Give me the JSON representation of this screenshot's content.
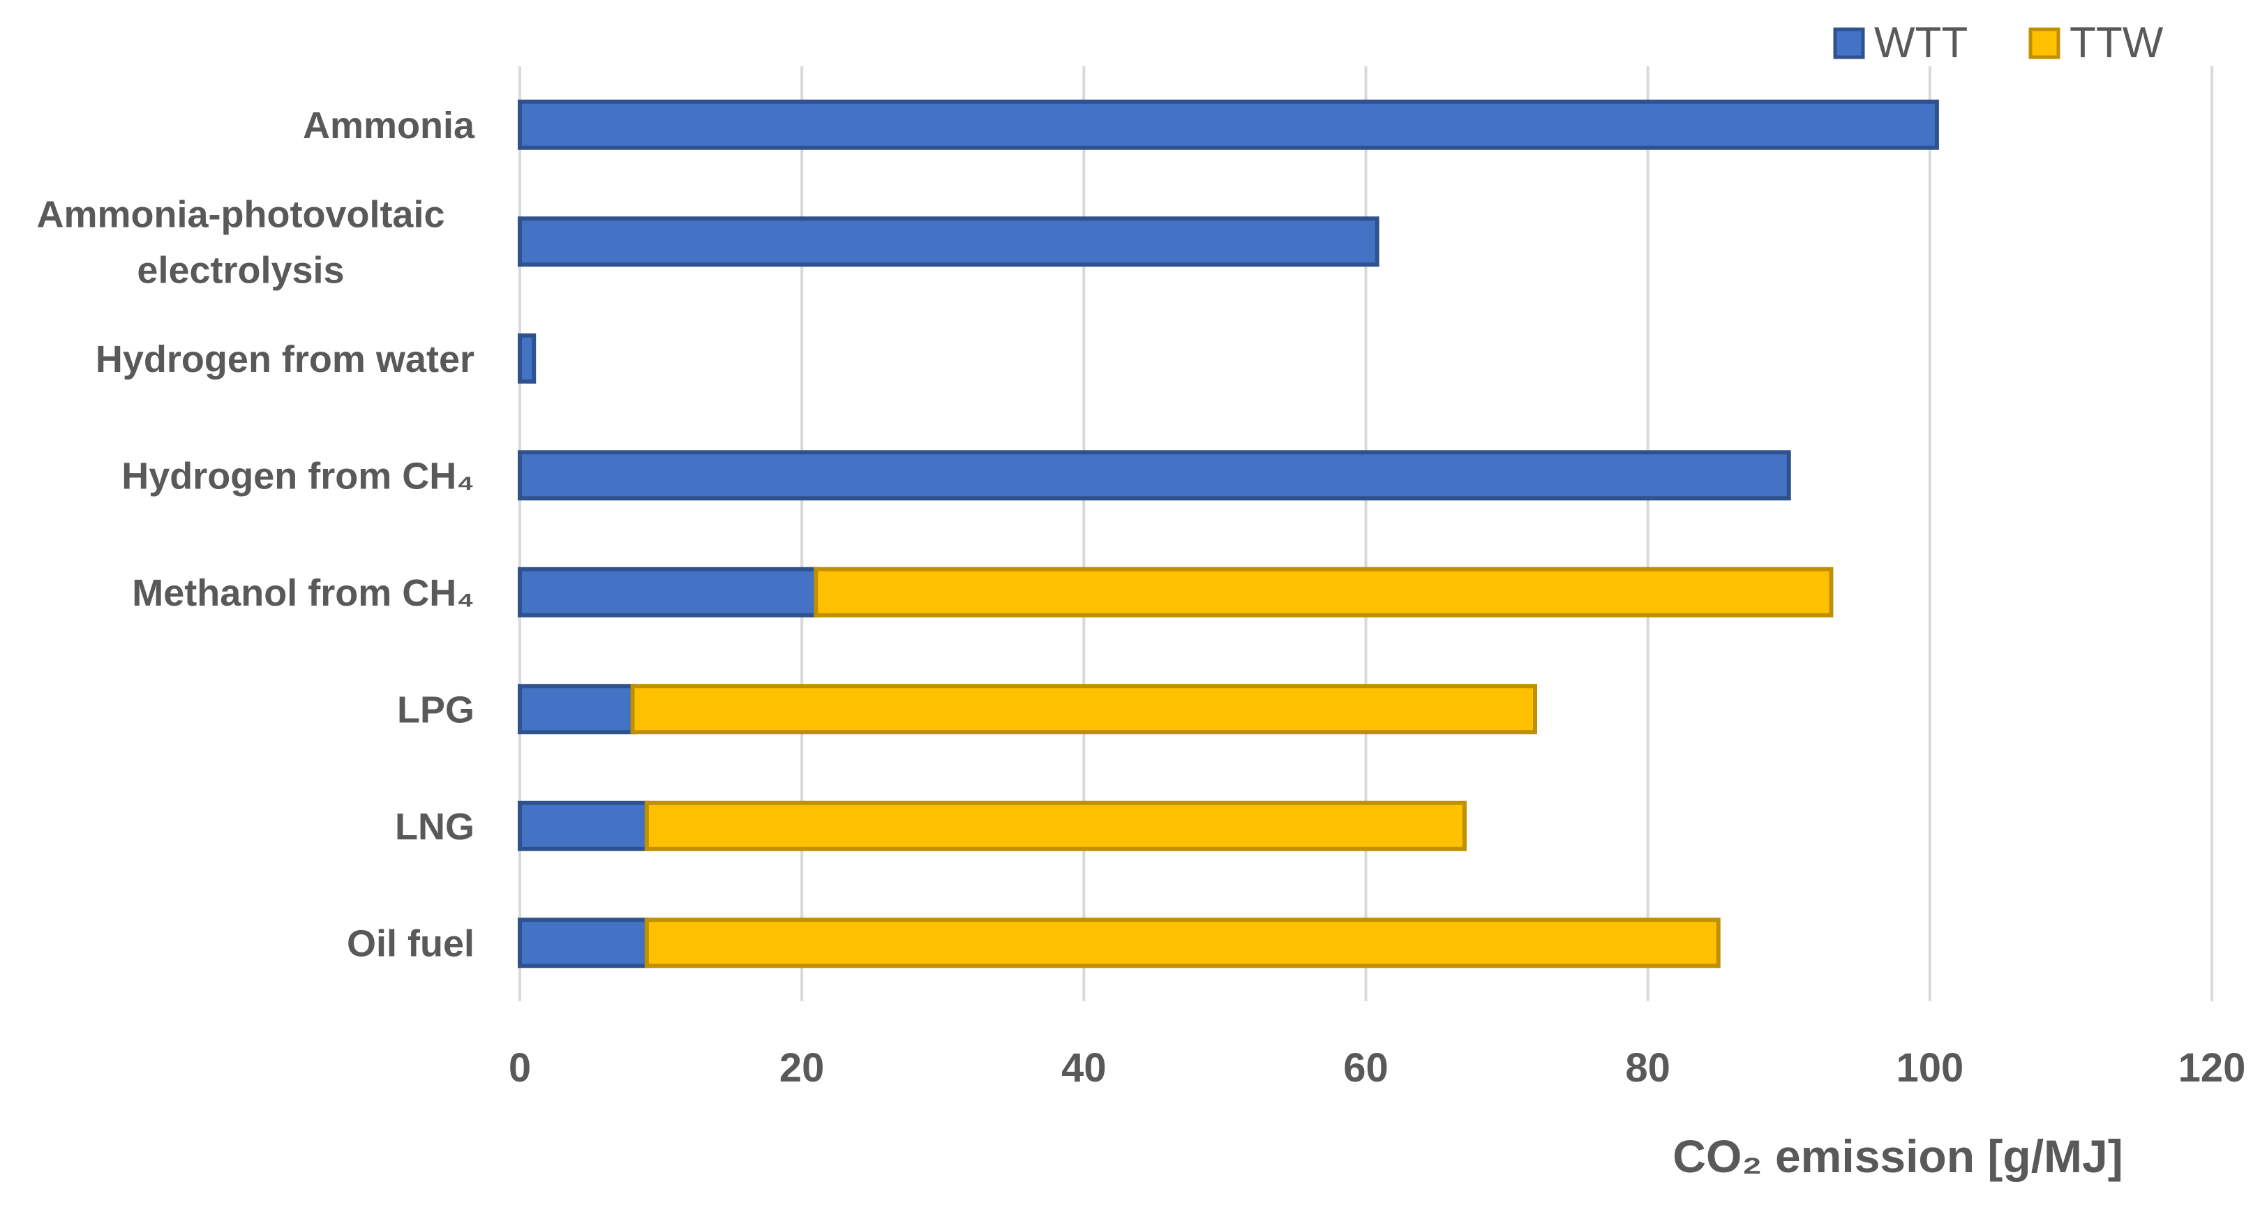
{
  "chart_data": {
    "type": "bar",
    "orientation": "horizontal",
    "stacked": true,
    "categories": [
      [
        "Ammonia"
      ],
      [
        "Ammonia-photovoltaic",
        "electrolysis"
      ],
      [
        "Hydrogen from water"
      ],
      [
        "Hydrogen from CH₄"
      ],
      [
        "Methanol from CH₄"
      ],
      [
        "LPG"
      ],
      [
        "LNG"
      ],
      [
        "Oil fuel"
      ]
    ],
    "series": [
      {
        "name": "WTT",
        "color": "#4472C4",
        "stroke": "#2F528F",
        "values": [
          100.5,
          60.8,
          1.0,
          90.0,
          21.0,
          8.0,
          9.0,
          9.0
        ]
      },
      {
        "name": "TTW",
        "color": "#FFC000",
        "stroke": "#BF9000",
        "values": [
          0,
          0,
          0,
          0,
          72.0,
          64.0,
          58.0,
          76.0
        ]
      }
    ],
    "xlabel": "CO₂ emission [g/MJ]",
    "xlim": [
      0,
      120
    ],
    "xticks": [
      0,
      20,
      40,
      60,
      80,
      100,
      120
    ],
    "grid": "vertical",
    "legend_position": "top-right",
    "grid_color": "#D9D9D9"
  }
}
